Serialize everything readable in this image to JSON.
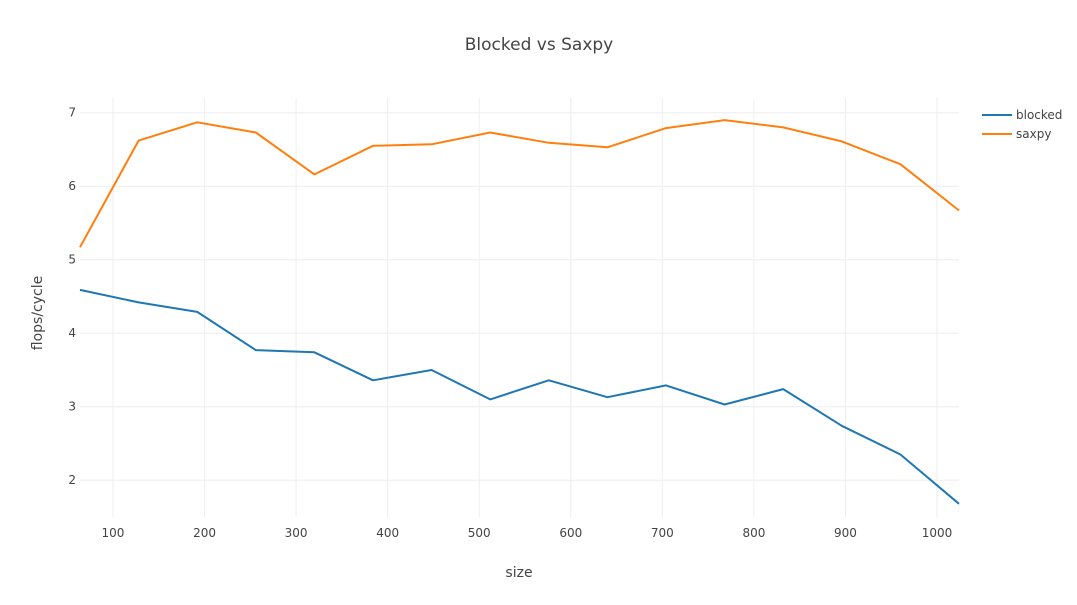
{
  "chart_data": {
    "type": "line",
    "title": "Blocked vs Saxpy",
    "xlabel": "size",
    "ylabel": "flops/cycle",
    "xlim": [
      64,
      1024
    ],
    "ylim": [
      1.5,
      7.2
    ],
    "xticks": [
      100,
      200,
      300,
      400,
      500,
      600,
      700,
      800,
      900,
      1000
    ],
    "yticks": [
      2,
      3,
      4,
      5,
      6,
      7
    ],
    "grid": true,
    "legend_position": "top-right",
    "x": [
      64,
      128,
      192,
      256,
      320,
      384,
      448,
      512,
      576,
      640,
      704,
      768,
      832,
      896,
      960,
      1024
    ],
    "series": [
      {
        "name": "blocked",
        "color": "#1f77b4",
        "values": [
          4.59,
          4.42,
          4.29,
          3.77,
          3.74,
          3.36,
          3.5,
          3.1,
          3.36,
          3.13,
          3.29,
          3.03,
          3.24,
          2.74,
          2.35,
          1.68
        ]
      },
      {
        "name": "saxpy",
        "color": "#ff7f0e",
        "values": [
          5.17,
          6.62,
          6.87,
          6.73,
          6.16,
          6.55,
          6.57,
          6.73,
          6.59,
          6.53,
          6.79,
          6.9,
          6.8,
          6.61,
          6.3,
          5.67
        ]
      }
    ]
  }
}
